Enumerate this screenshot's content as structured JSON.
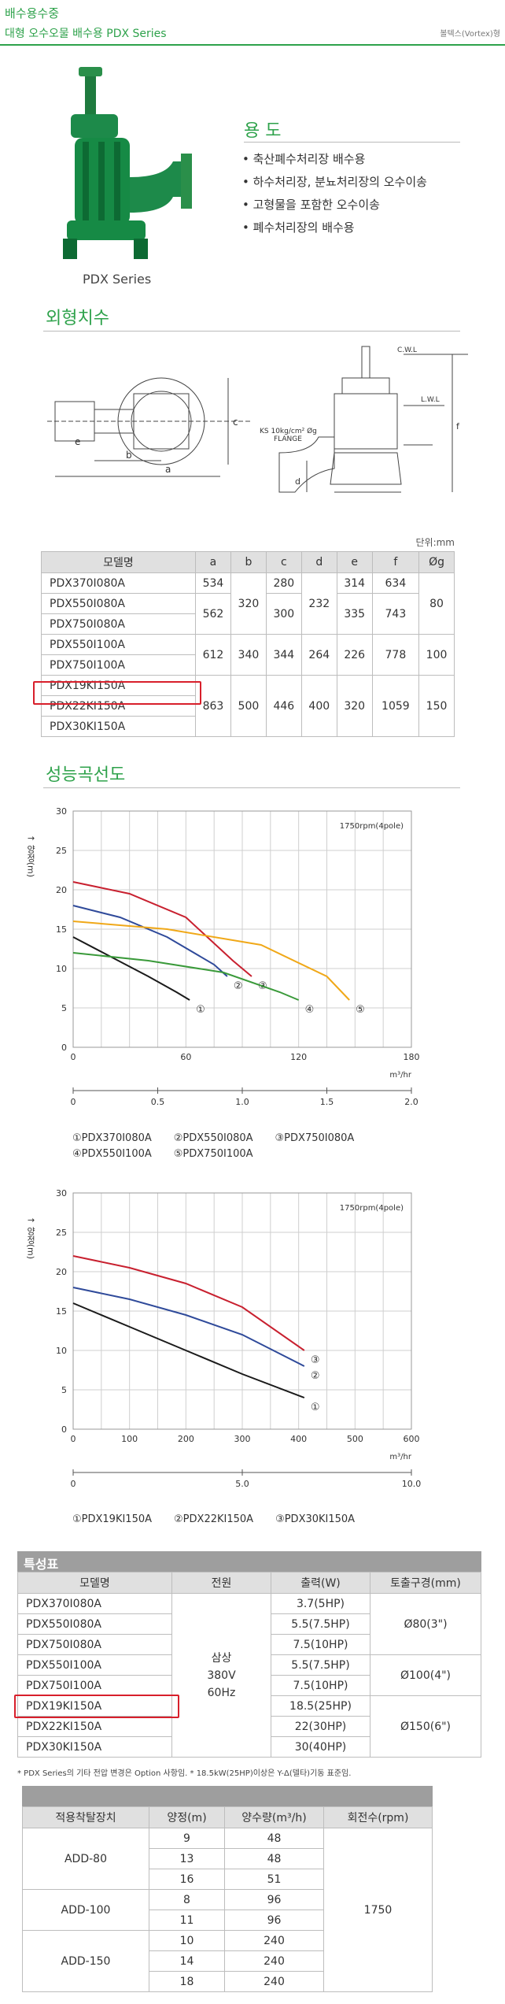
{
  "header": {
    "category": "배수용수중",
    "title": "대형 오수오물 배수용 PDX Series",
    "impeller_note": "볼텍스(Vortex)형"
  },
  "product": {
    "caption": "PDX Series"
  },
  "usage": {
    "heading": "용 도",
    "items": [
      "축산폐수처리장 배수용",
      "하수처리장, 분뇨처리장의 오수이송",
      "고형물을 포함한 오수이송",
      "폐수처리장의 배수용"
    ]
  },
  "dimensions": {
    "heading": "외형치수",
    "flange_label": "KS 10kg/cm² Øg",
    "flange_sub": "FLANGE",
    "unit": "단위:mm",
    "columns": [
      "모델명",
      "a",
      "b",
      "c",
      "d",
      "e",
      "f",
      "Øg"
    ],
    "rows": [
      [
        "PDX370I080A",
        "534",
        "320",
        "280",
        "232",
        "314",
        "634",
        "80"
      ],
      [
        "PDX550I080A",
        "562",
        "",
        "300",
        "",
        "335",
        "743",
        ""
      ],
      [
        "PDX750I080A",
        "",
        "",
        "",
        "",
        "",
        "",
        ""
      ],
      [
        "PDX550I100A",
        "612",
        "340",
        "344",
        "264",
        "226",
        "778",
        "100"
      ],
      [
        "PDX750I100A",
        "",
        "",
        "",
        "",
        "",
        "",
        ""
      ],
      [
        "PDX19KI150A",
        "863",
        "500",
        "446",
        "400",
        "320",
        "1059",
        "150"
      ],
      [
        "PDX22KI150A",
        "",
        "",
        "",
        "",
        "",
        "",
        ""
      ],
      [
        "PDX30KI150A",
        "",
        "",
        "",
        "",
        "",
        "",
        ""
      ]
    ]
  },
  "curves": {
    "heading": "성능곡선도",
    "chart_data": [
      {
        "type": "line",
        "rpm_note": "1750rpm(4pole)",
        "ylabel": "양정(m)",
        "xlabel": "양수량(m³/min)",
        "x_unit": "m³/hr",
        "xlim": [
          0,
          180
        ],
        "ylim": [
          0,
          30
        ],
        "x_ticks": [
          0,
          60,
          120,
          180
        ],
        "y_ticks": [
          0,
          5,
          10,
          15,
          20,
          25,
          30
        ],
        "x2_ticks": [
          "0",
          "0.5",
          "1.0",
          "1.5",
          "2.0"
        ],
        "series": [
          {
            "name": "PDX370I080A",
            "marker": "①",
            "color": "#1a1a1a",
            "x": [
              0,
              20,
              40,
              55,
              62
            ],
            "y": [
              14,
              11.5,
              9,
              7,
              6
            ]
          },
          {
            "name": "PDX550I080A",
            "marker": "②",
            "color": "#2f4a9a",
            "x": [
              0,
              25,
              50,
              75,
              82
            ],
            "y": [
              18,
              16.5,
              14,
              10.5,
              9
            ]
          },
          {
            "name": "PDX750I080A",
            "marker": "③",
            "color": "#c8202f",
            "x": [
              0,
              30,
              60,
              85,
              95
            ],
            "y": [
              21,
              19.5,
              16.5,
              11,
              9
            ]
          },
          {
            "name": "PDX550I100A",
            "marker": "④",
            "color": "#3a9a3a",
            "x": [
              0,
              40,
              80,
              110,
              120
            ],
            "y": [
              12,
              11,
              9.5,
              7,
              6
            ]
          },
          {
            "name": "PDX750I100A",
            "marker": "⑤",
            "color": "#f0a818",
            "x": [
              0,
              50,
              100,
              135,
              147
            ],
            "y": [
              16,
              15,
              13,
              9,
              6
            ]
          }
        ],
        "legend": [
          "①PDX370I080A",
          "②PDX550I080A",
          "③PDX750I080A",
          "④PDX550I100A",
          "⑤PDX750I100A"
        ]
      },
      {
        "type": "line",
        "rpm_note": "1750rpm(4pole)",
        "ylabel": "양정(m)",
        "xlabel": "양수량(m³/min)",
        "x_unit": "m³/hr",
        "xlim": [
          0,
          600
        ],
        "ylim": [
          0,
          30
        ],
        "x_ticks": [
          0,
          100,
          200,
          300,
          400,
          500,
          600
        ],
        "y_ticks": [
          0,
          5,
          10,
          15,
          20,
          25,
          30
        ],
        "x2_ticks": [
          "0",
          "5.0",
          "10.0"
        ],
        "series": [
          {
            "name": "PDX19KI150A",
            "marker": "①",
            "color": "#1a1a1a",
            "x": [
              0,
              100,
              200,
              300,
              410
            ],
            "y": [
              16,
              13,
              10,
              7,
              4
            ]
          },
          {
            "name": "PDX22KI150A",
            "marker": "②",
            "color": "#2f4a9a",
            "x": [
              0,
              100,
              200,
              300,
              410
            ],
            "y": [
              18,
              16.5,
              14.5,
              12,
              8
            ]
          },
          {
            "name": "PDX30KI150A",
            "marker": "③",
            "color": "#c8202f",
            "x": [
              0,
              100,
              200,
              300,
              410
            ],
            "y": [
              22,
              20.5,
              18.5,
              15.5,
              10
            ]
          }
        ],
        "legend": [
          "①PDX19KI150A",
          "②PDX22KI150A",
          "③PDX30KI150A"
        ]
      }
    ]
  },
  "specs": {
    "heading": "특성표",
    "columns": [
      "모델명",
      "전원",
      "출력(W)",
      "토출구경(mm)"
    ],
    "models": [
      "PDX370I080A",
      "PDX550I080A",
      "PDX750I080A",
      "PDX550I100A",
      "PDX750I100A",
      "PDX19KI150A",
      "PDX22KI150A",
      "PDX30KI150A"
    ],
    "power_lines": [
      "삼상",
      "380V",
      "60Hz"
    ],
    "outputs": [
      "3.7(5HP)",
      "5.5(7.5HP)",
      "7.5(10HP)",
      "5.5(7.5HP)",
      "7.5(10HP)",
      "18.5(25HP)",
      "22(30HP)",
      "30(40HP)"
    ],
    "discharge": [
      "Ø80(3\")",
      "Ø100(4\")",
      "Ø150(6\")"
    ],
    "footnote": "* PDX Series의 기타 전압 변경은 Option 사항임. * 18.5kW(25HP)이상은 Y-Δ(델타)기동 표준임."
  },
  "adapter": {
    "columns": [
      "적용착탈장치",
      "양정(m)",
      "양수량(m³/h)",
      "회전수(rpm)"
    ],
    "groups": [
      {
        "name": "ADD-80",
        "rows": [
          [
            "9",
            "48"
          ],
          [
            "13",
            "48"
          ],
          [
            "16",
            "51"
          ]
        ]
      },
      {
        "name": "ADD-100",
        "rows": [
          [
            "8",
            "96"
          ],
          [
            "11",
            "96"
          ]
        ]
      },
      {
        "name": "ADD-150",
        "rows": [
          [
            "10",
            "240"
          ],
          [
            "14",
            "240"
          ],
          [
            "18",
            "240"
          ]
        ]
      }
    ],
    "rpm": "1750"
  }
}
